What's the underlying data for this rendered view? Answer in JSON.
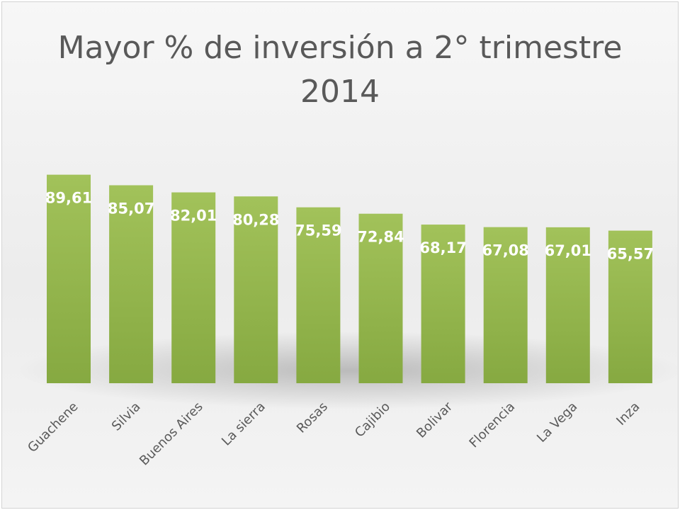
{
  "chart_data": {
    "type": "bar",
    "title": "Mayor % de inversión a 2° trimestre",
    "subtitle": "2014",
    "categories": [
      "Guachene",
      "Silvia",
      "Buenos Aires",
      "La sierra",
      "Rosas",
      "Cajibio",
      "Bolivar",
      "Florencia",
      "La Vega",
      "Inza"
    ],
    "values": [
      89.61,
      85.07,
      82.01,
      80.28,
      75.59,
      72.84,
      68.17,
      67.08,
      67.01,
      65.57
    ],
    "value_labels": [
      "89,61",
      "85,07",
      "82,01",
      "80,28",
      "75,59",
      "72,84",
      "68,17",
      "67,08",
      "67,01",
      "65,57"
    ],
    "xlabel": "",
    "ylabel": "",
    "ylim": [
      0,
      100
    ],
    "grid": false,
    "legend": "none",
    "bar_color": "#8fb04a",
    "bar_color_light": "#a2c25a",
    "label_color": "#ffffff"
  }
}
